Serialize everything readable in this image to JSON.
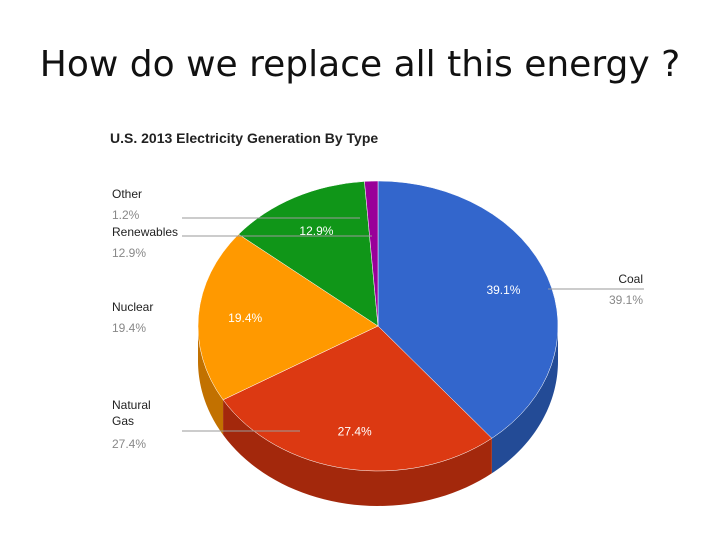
{
  "slide": {
    "title": "How do we replace all this energy ?"
  },
  "chart_data": {
    "type": "pie",
    "title": "U.S. 2013 Electricity Generation By Type",
    "slices": [
      {
        "name": "Coal",
        "value": 39.1,
        "label": "39.1%",
        "color": "#3366cc",
        "side_color": "#234b96"
      },
      {
        "name": "Natural Gas",
        "value": 27.4,
        "label": "27.4%",
        "color": "#dc3912",
        "side_color": "#a3280c"
      },
      {
        "name": "Nuclear",
        "value": 19.4,
        "label": "19.4%",
        "color": "#ff9900",
        "side_color": "#c27100"
      },
      {
        "name": "Renewables",
        "value": 12.9,
        "label": "12.9%",
        "color": "#109618",
        "side_color": "#0b6e11"
      },
      {
        "name": "Other",
        "value": 1.2,
        "label": "1.2%",
        "color": "#990099",
        "side_color": "#6e006e"
      }
    ],
    "legend": [
      {
        "name": "Other",
        "value_label": "1.2%"
      },
      {
        "name": "Renewables",
        "value_label": "12.9%"
      },
      {
        "name": "Nuclear",
        "value_label": "19.4%"
      },
      {
        "name": "Natural Gas",
        "value_label": "27.4%"
      },
      {
        "name": "Coal",
        "value_label": "39.1%"
      }
    ],
    "legend_placement": "left and right of pie with leader lines",
    "style": "3d-tilted"
  }
}
